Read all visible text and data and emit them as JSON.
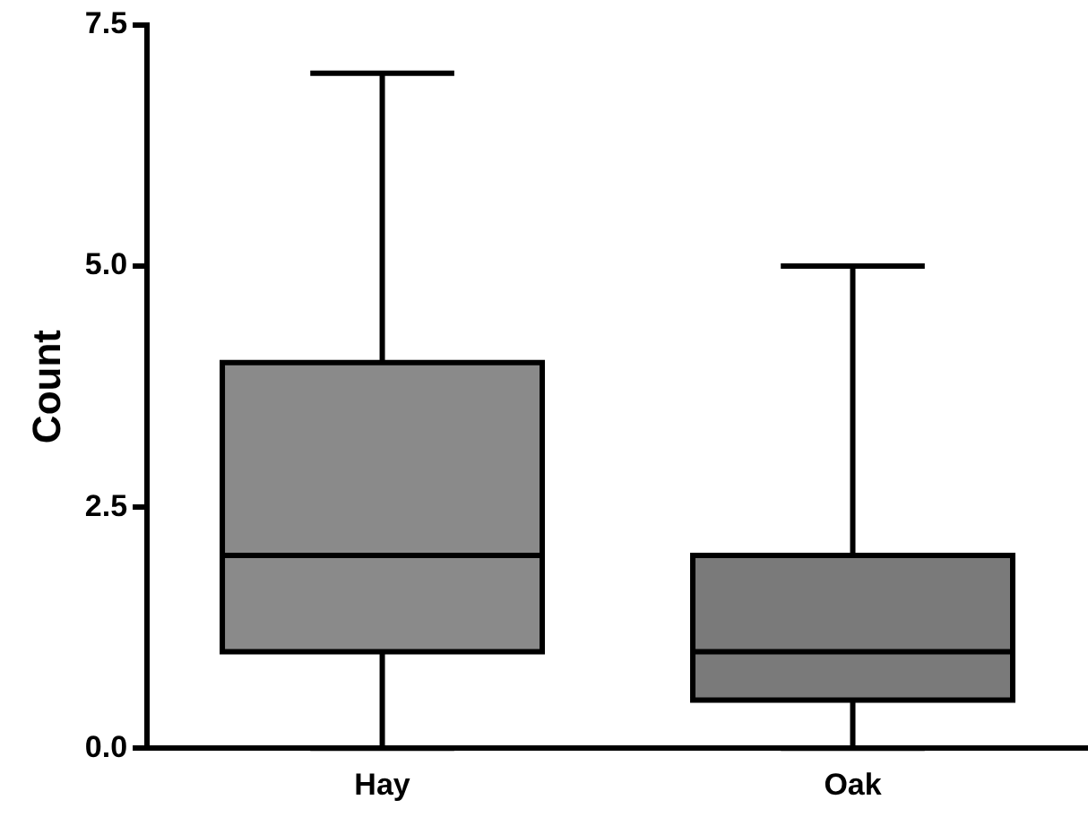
{
  "chart_data": {
    "type": "box",
    "ylabel": "Count",
    "categories": [
      "Hay",
      "Oak"
    ],
    "boxes": [
      {
        "low": 0,
        "q1": 1,
        "median": 2,
        "q3": 4,
        "high": 7
      },
      {
        "low": 0,
        "q1": 0.5,
        "median": 1,
        "q3": 2,
        "high": 5
      }
    ],
    "colors": [
      "#8a8a8a",
      "#7a7a7a"
    ],
    "ylim": [
      0,
      7.5
    ],
    "yticks": [
      {
        "value": 0,
        "label": "0.0"
      },
      {
        "value": 2.5,
        "label": "2.5"
      },
      {
        "value": 5,
        "label": "5.0"
      },
      {
        "value": 7.5,
        "label": "7.5"
      }
    ],
    "grid": false
  }
}
